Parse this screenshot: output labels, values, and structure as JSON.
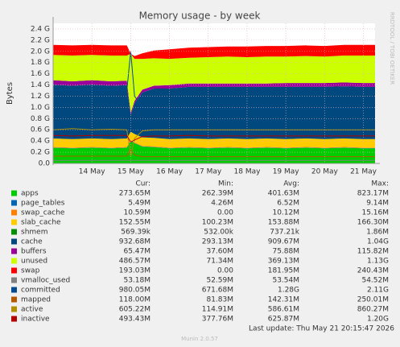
{
  "chart_data": {
    "type": "area",
    "title": "Memory usage - by week",
    "y_label": "Bytes",
    "watermark": "RRDTOOL / TOBI OETIKER",
    "grid": true,
    "x": [
      13.0,
      13.5,
      14.0,
      14.5,
      14.9,
      15.0,
      15.1,
      15.3,
      15.6,
      16.0,
      16.5,
      17.0,
      17.5,
      18.0,
      18.5,
      19.0,
      19.5,
      20.0,
      20.5,
      21.0,
      21.3
    ],
    "xlim": [
      13.0,
      21.3
    ],
    "xticks": [
      {
        "value": 14,
        "label": "14 May"
      },
      {
        "value": 15,
        "label": "15 May"
      },
      {
        "value": 16,
        "label": "16 May"
      },
      {
        "value": 17,
        "label": "17 May"
      },
      {
        "value": 18,
        "label": "18 May"
      },
      {
        "value": 19,
        "label": "19 May"
      },
      {
        "value": 20,
        "label": "20 May"
      },
      {
        "value": 21,
        "label": "21 May"
      }
    ],
    "ylim": [
      0,
      2.5
    ],
    "yticks": [
      {
        "value": 0,
        "label": "0.0"
      },
      {
        "value": 0.2,
        "label": "0.2 G"
      },
      {
        "value": 0.4,
        "label": "0.4 G"
      },
      {
        "value": 0.6,
        "label": "0.6 G"
      },
      {
        "value": 0.8,
        "label": "0.8 G"
      },
      {
        "value": 1.0,
        "label": "1.0 G"
      },
      {
        "value": 1.2,
        "label": "1.2 G"
      },
      {
        "value": 1.4,
        "label": "1.4 G"
      },
      {
        "value": 1.6,
        "label": "1.6 G"
      },
      {
        "value": 1.8,
        "label": "1.8 G"
      },
      {
        "value": 2.0,
        "label": "2.0 G"
      },
      {
        "value": 2.2,
        "label": "2.2 G"
      },
      {
        "value": 2.4,
        "label": "2.4 G"
      }
    ],
    "legend_columns": [
      "Cur:",
      "Min:",
      "Avg:",
      "Max:"
    ],
    "series": [
      {
        "name": "apps",
        "color": "#00cc00",
        "draw": "area",
        "values": [
          0.28,
          0.27,
          0.28,
          0.27,
          0.28,
          0.4,
          0.36,
          0.3,
          0.29,
          0.27,
          0.28,
          0.27,
          0.28,
          0.27,
          0.28,
          0.27,
          0.28,
          0.27,
          0.28,
          0.27,
          0.27
        ],
        "stats": [
          "273.65M",
          "262.39M",
          "401.63M",
          "823.17M"
        ]
      },
      {
        "name": "page_tables",
        "color": "#0066b3",
        "draw": "area",
        "values": [
          0.005,
          0.005,
          0.005,
          0.005,
          0.005,
          0.005,
          0.005,
          0.005,
          0.005,
          0.005,
          0.005,
          0.005,
          0.005,
          0.005,
          0.005,
          0.005,
          0.005,
          0.005,
          0.005,
          0.005,
          0.005
        ],
        "stats": [
          "5.49M",
          "4.26M",
          "6.52M",
          "9.14M"
        ]
      },
      {
        "name": "swap_cache",
        "color": "#ff8000",
        "draw": "area",
        "values": [
          0.01,
          0.01,
          0.01,
          0.01,
          0.01,
          0.01,
          0.01,
          0.01,
          0.01,
          0.01,
          0.01,
          0.01,
          0.01,
          0.01,
          0.01,
          0.01,
          0.01,
          0.01,
          0.01,
          0.01,
          0.01
        ],
        "stats": [
          "10.59M",
          "0.00",
          "10.12M",
          "15.16M"
        ]
      },
      {
        "name": "slab_cache",
        "color": "#ffcc00",
        "draw": "area",
        "values": [
          0.15,
          0.15,
          0.15,
          0.15,
          0.15,
          0.15,
          0.15,
          0.15,
          0.15,
          0.15,
          0.15,
          0.15,
          0.15,
          0.15,
          0.15,
          0.15,
          0.15,
          0.15,
          0.15,
          0.15,
          0.15
        ],
        "stats": [
          "152.55M",
          "100.23M",
          "153.88M",
          "166.30M"
        ]
      },
      {
        "name": "shmem",
        "color": "#008f00",
        "draw": "area",
        "values": [
          0.001,
          0.001,
          0.001,
          0.001,
          0.001,
          0.001,
          0.001,
          0.001,
          0.001,
          0.001,
          0.001,
          0.001,
          0.001,
          0.001,
          0.001,
          0.001,
          0.001,
          0.001,
          0.001,
          0.001,
          0.001
        ],
        "stats": [
          "569.39k",
          "532.00k",
          "737.21k",
          "1.86M"
        ]
      },
      {
        "name": "cache",
        "color": "#00487d",
        "draw": "area",
        "values": [
          0.96,
          0.95,
          0.96,
          0.95,
          0.95,
          0.3,
          0.55,
          0.8,
          0.88,
          0.9,
          0.92,
          0.93,
          0.92,
          0.93,
          0.92,
          0.93,
          0.92,
          0.93,
          0.93,
          0.93,
          0.93
        ],
        "stats": [
          "932.68M",
          "293.13M",
          "909.67M",
          "1.04G"
        ]
      },
      {
        "name": "buffers",
        "color": "#990099",
        "draw": "area",
        "values": [
          0.08,
          0.08,
          0.08,
          0.08,
          0.08,
          0.04,
          0.04,
          0.05,
          0.05,
          0.06,
          0.06,
          0.06,
          0.06,
          0.06,
          0.06,
          0.07,
          0.07,
          0.07,
          0.07,
          0.07,
          0.07
        ],
        "stats": [
          "65.47M",
          "37.60M",
          "75.88M",
          "115.82M"
        ]
      },
      {
        "name": "unused",
        "color": "#ccff00",
        "draw": "area",
        "values": [
          0.45,
          0.46,
          0.45,
          0.46,
          0.45,
          1.05,
          0.75,
          0.55,
          0.49,
          0.47,
          0.46,
          0.47,
          0.48,
          0.47,
          0.48,
          0.47,
          0.48,
          0.47,
          0.48,
          0.49,
          0.49
        ],
        "stats": [
          "486.57M",
          "71.34M",
          "369.13M",
          "1.13G"
        ]
      },
      {
        "name": "swap",
        "color": "#ff0000",
        "draw": "area",
        "values": [
          0.18,
          0.18,
          0.18,
          0.18,
          0.18,
          0.0,
          0.05,
          0.1,
          0.14,
          0.17,
          0.18,
          0.18,
          0.18,
          0.19,
          0.19,
          0.19,
          0.19,
          0.19,
          0.19,
          0.19,
          0.19
        ],
        "stats": [
          "193.03M",
          "0.00",
          "181.95M",
          "240.43M"
        ]
      },
      {
        "name": "vmalloc_used",
        "color": "#808080",
        "draw": "line",
        "values": [
          0.053,
          0.053,
          0.053,
          0.053,
          0.053,
          0.053,
          0.053,
          0.053,
          0.053,
          0.053,
          0.053,
          0.053,
          0.053,
          0.053,
          0.053,
          0.053,
          0.053,
          0.053,
          0.053,
          0.053,
          0.053
        ],
        "stats": [
          "53.18M",
          "52.59M",
          "53.54M",
          "54.52M"
        ]
      },
      {
        "name": "committed",
        "color": "#004c8f",
        "draw": "line",
        "values": [
          1.3,
          1.32,
          1.3,
          1.31,
          1.3,
          2.0,
          1.2,
          1.0,
          0.98,
          0.97,
          0.98,
          0.98,
          0.97,
          0.98,
          0.98,
          0.98,
          0.97,
          0.98,
          0.98,
          0.98,
          0.98
        ],
        "stats": [
          "980.05M",
          "671.68M",
          "1.28G",
          "2.11G"
        ]
      },
      {
        "name": "mapped",
        "color": "#b35a00",
        "draw": "line",
        "values": [
          0.13,
          0.13,
          0.13,
          0.13,
          0.13,
          0.25,
          0.15,
          0.12,
          0.12,
          0.12,
          0.12,
          0.12,
          0.12,
          0.12,
          0.12,
          0.12,
          0.12,
          0.12,
          0.12,
          0.12,
          0.12
        ],
        "stats": [
          "118.00M",
          "81.83M",
          "142.31M",
          "250.01M"
        ]
      },
      {
        "name": "active",
        "color": "#b38f00",
        "draw": "line",
        "values": [
          0.6,
          0.62,
          0.6,
          0.61,
          0.6,
          0.12,
          0.45,
          0.58,
          0.6,
          0.6,
          0.6,
          0.6,
          0.6,
          0.6,
          0.6,
          0.6,
          0.6,
          0.6,
          0.6,
          0.6,
          0.6
        ],
        "stats": [
          "605.22M",
          "114.91M",
          "586.61M",
          "860.27M"
        ]
      },
      {
        "name": "inactive",
        "color": "#b30000",
        "draw": "line",
        "values": [
          0.5,
          0.49,
          0.5,
          0.5,
          0.5,
          0.38,
          0.42,
          0.48,
          0.49,
          0.49,
          0.5,
          0.49,
          0.49,
          0.49,
          0.49,
          0.49,
          0.49,
          0.49,
          0.49,
          0.49,
          0.49
        ],
        "stats": [
          "493.43M",
          "377.76M",
          "625.87M",
          "1.20G"
        ]
      }
    ],
    "last_update": "Last update: Thu May 21 20:15:47 2026",
    "generator": "Munin 2.0.57"
  }
}
